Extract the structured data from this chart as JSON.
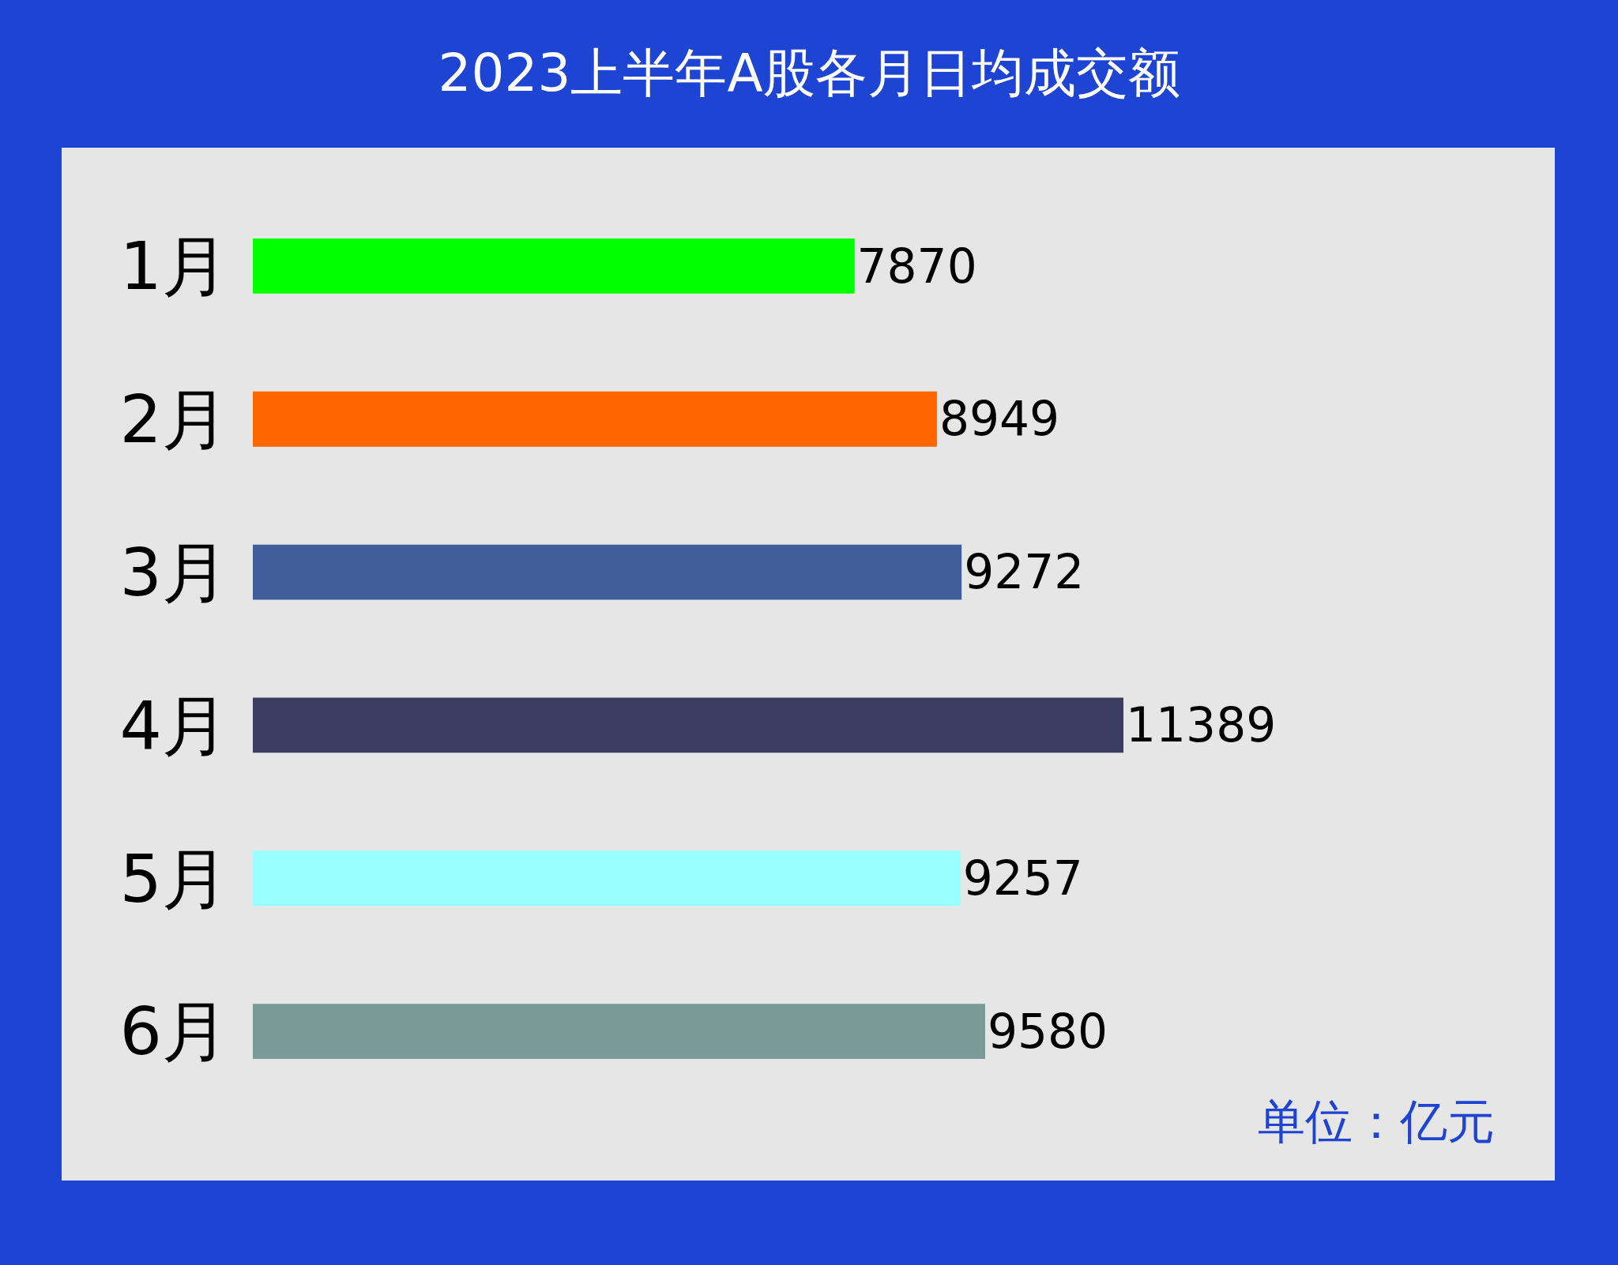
{
  "chart_data": {
    "type": "bar",
    "orientation": "horizontal",
    "title": "2023上半年A股各月日均成交额",
    "categories": [
      "1月",
      "2月",
      "3月",
      "4月",
      "5月",
      "6月"
    ],
    "values": [
      7870,
      8949,
      9272,
      11389,
      9257,
      9580
    ],
    "colors": [
      "#00ff00",
      "#ff6600",
      "#3f5e9a",
      "#3c3c62",
      "#99ffff",
      "#7b9a98"
    ],
    "data_labels": true,
    "tick_labels": "y",
    "grid": false,
    "legend": false,
    "annotations": [
      "单位：亿元"
    ]
  }
}
